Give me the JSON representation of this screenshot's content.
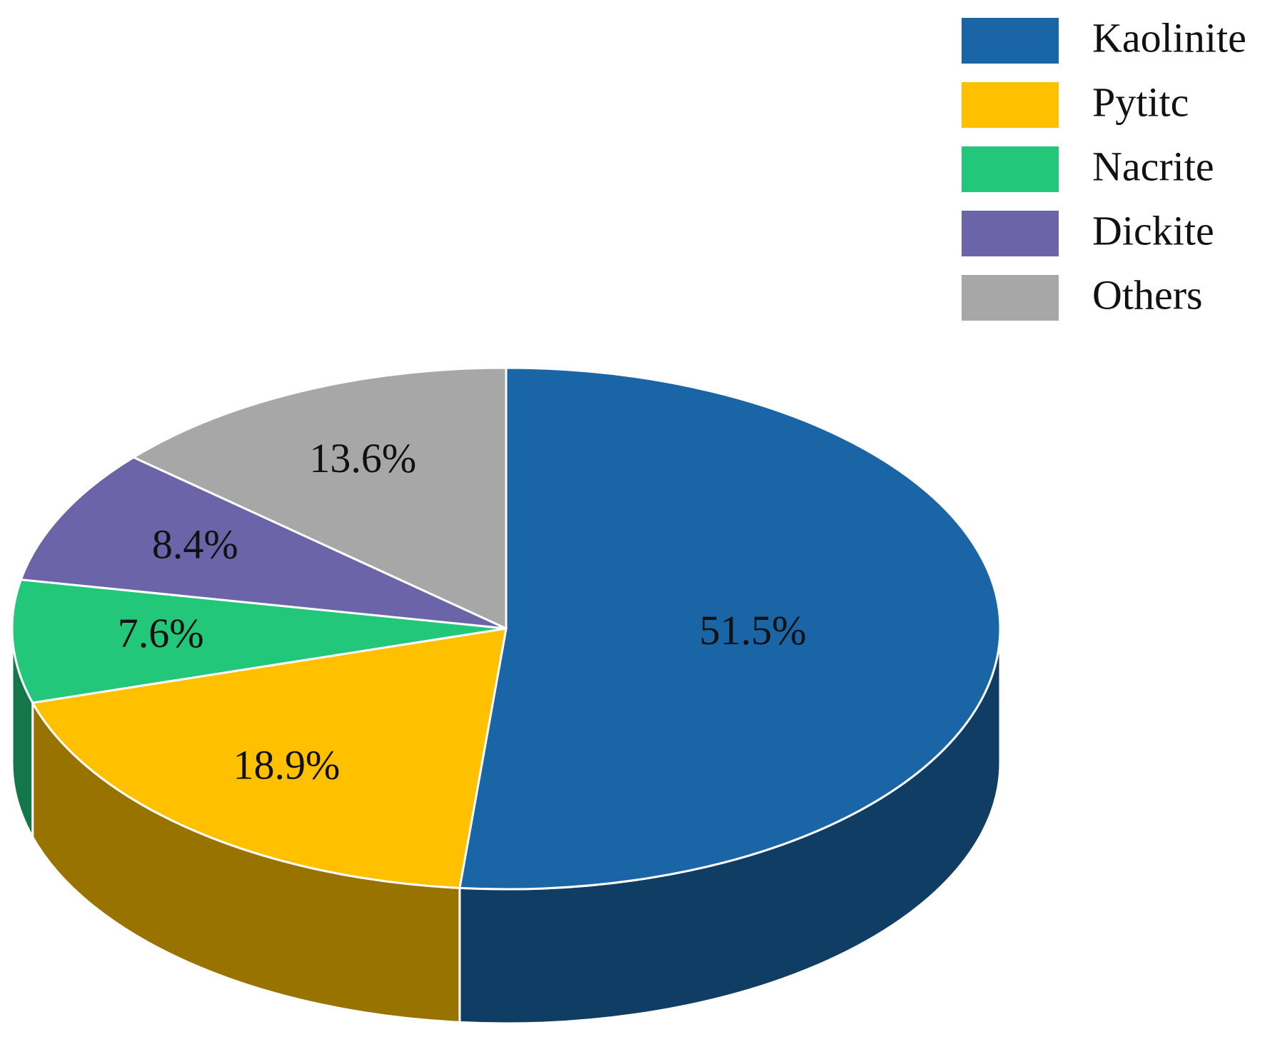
{
  "chart_data": {
    "type": "pie3d",
    "categories": [
      "Kaolinite",
      "Pytitc",
      "Nacrite",
      "Dickite",
      "Others"
    ],
    "values": [
      51.5,
      18.9,
      7.6,
      8.4,
      13.6
    ],
    "value_labels": [
      "51.5%",
      "18.9%",
      "7.6%",
      "8.4%",
      "13.6%"
    ],
    "colors": [
      "#1a65a6",
      "#ffc000",
      "#22c77a",
      "#6b64a9",
      "#a7a7a7"
    ],
    "legend": "top-right"
  }
}
